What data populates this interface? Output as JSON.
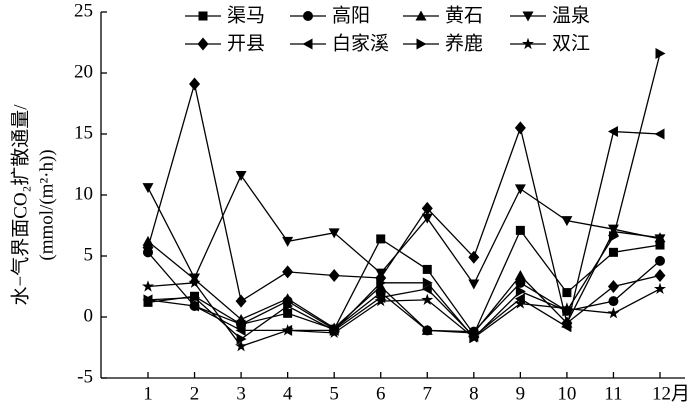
{
  "chart_data": {
    "type": "line",
    "y_label_lines": [
      "水−气界面CO₂扩散通量/",
      "(mmol/(m²·h))"
    ],
    "categories": [
      "1",
      "2",
      "3",
      "4",
      "5",
      "6",
      "7",
      "8",
      "9",
      "10",
      "11",
      "12月"
    ],
    "ylim": [
      -5,
      25
    ],
    "yticks": [
      -5,
      0,
      5,
      10,
      15,
      20,
      25
    ],
    "legend": "top",
    "color": "#000000",
    "series": [
      {
        "name": "渠马",
        "marker": "square",
        "values": [
          1.2,
          1.7,
          -0.6,
          0.3,
          -1.0,
          6.4,
          3.9,
          -1.4,
          7.1,
          2.0,
          5.3,
          5.9
        ]
      },
      {
        "name": "高阳",
        "marker": "circle",
        "values": [
          5.3,
          0.9,
          -0.6,
          1.3,
          -1.0,
          2.0,
          -1.1,
          -1.2,
          2.8,
          0.5,
          1.3,
          4.6
        ]
      },
      {
        "name": "黄石",
        "marker": "triangle-up",
        "values": [
          6.2,
          3.1,
          -0.2,
          1.5,
          -0.9,
          2.5,
          -1.1,
          -1.3,
          3.4,
          -0.5,
          7.0,
          6.5
        ]
      },
      {
        "name": "温泉",
        "marker": "triangle-down",
        "values": [
          10.6,
          3.2,
          11.6,
          6.2,
          6.9,
          3.6,
          8.1,
          2.7,
          10.5,
          7.9,
          7.2,
          6.4
        ]
      },
      {
        "name": "开县",
        "marker": "diamond",
        "values": [
          5.7,
          19.1,
          1.3,
          3.7,
          3.4,
          3.2,
          8.9,
          4.9,
          15.5,
          -0.5,
          2.5,
          3.4
        ]
      },
      {
        "name": "白家溪",
        "marker": "triangle-left",
        "values": [
          1.4,
          0.9,
          -1.1,
          -1.1,
          -1.1,
          1.6,
          2.3,
          -1.6,
          1.5,
          -0.8,
          15.2,
          15.0
        ]
      },
      {
        "name": "养鹿",
        "marker": "triangle-right",
        "values": [
          1.4,
          1.6,
          -1.8,
          0.9,
          -1.1,
          2.8,
          2.8,
          -1.7,
          2.1,
          0.5,
          6.6,
          21.6
        ]
      },
      {
        "name": "双江",
        "marker": "star",
        "values": [
          2.5,
          2.8,
          -2.4,
          -1.1,
          -1.3,
          1.3,
          1.4,
          -1.7,
          1.1,
          0.7,
          0.3,
          2.3
        ]
      }
    ]
  }
}
